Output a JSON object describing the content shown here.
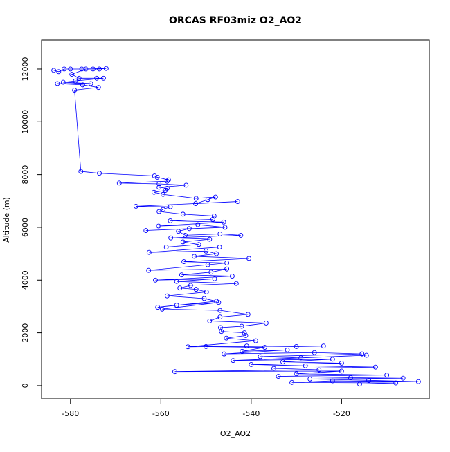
{
  "chart_data": {
    "type": "line",
    "title": "ORCAS RF03miz O2_AO2",
    "x_label": "O2_AO2",
    "y_label": "Altitude (m)",
    "color": "#0000ff",
    "markers": true,
    "x": [
      -583.7,
      -582.6,
      -581.4,
      -580,
      -577.5,
      -575,
      -573.6,
      -572.1,
      -576.6,
      -579.7,
      -578.1,
      -574.2,
      -572.7,
      -578.9,
      -581.6,
      -575.5,
      -582.9,
      -577.3,
      -573.8,
      -579.1,
      -577.7,
      -573.6,
      -561.4,
      -560.8,
      -558.3,
      -558.6,
      -569.2,
      -560.4,
      -554.4,
      -560.4,
      -558.6,
      -559,
      -561.5,
      -559.5,
      -552.2,
      -547.9,
      -549.6,
      -552.3,
      -543,
      -565.5,
      -557.9,
      -559.5,
      -560.4,
      -555.1,
      -548.2,
      -548.5,
      -557.9,
      -546.1,
      -560.5,
      -551.8,
      -545.8,
      -563.3,
      -553.7,
      -556.1,
      -554.6,
      -546.9,
      -542.3,
      -557.8,
      -549.2,
      -555.1,
      -551.6,
      -558.8,
      -547,
      -562.6,
      -550,
      -547.7,
      -552.6,
      -540.5,
      -554.9,
      -545.4,
      -549.6,
      -562.7,
      -545.4,
      -548.9,
      -555.4,
      -544.2,
      -561.2,
      -548.1,
      -556.5,
      -543.3,
      -553.4,
      -555.8,
      -552.2,
      -549.9,
      -558.6,
      -550.4,
      -547.7,
      -560.7,
      -556.5,
      -547.2,
      -559.7,
      -546.9,
      -540.7,
      -546.9,
      -549.2,
      -536.7,
      -542.1,
      -546.8,
      -546.6,
      -541.5,
      -541.2,
      -545.5,
      -539,
      -554,
      -541,
      -530,
      -524,
      -550,
      -537,
      -542,
      -532,
      -546,
      -526,
      -515.5,
      -538,
      -529,
      -514.5,
      -544,
      -522,
      -533,
      -520,
      -540,
      -528,
      -512.5,
      -535,
      -525,
      -556.9,
      -520,
      -530,
      -510,
      -534,
      -518,
      -506.4,
      -527,
      -514,
      -503,
      -522,
      -531,
      -508,
      -516
    ],
    "y": [
      11950,
      11900,
      12000,
      12000,
      12000,
      12000,
      12000,
      12020,
      12000,
      11800,
      11650,
      11650,
      11650,
      11550,
      11500,
      11450,
      11450,
      11400,
      11300,
      11200,
      8120,
      8050,
      7950,
      7900,
      7800,
      7750,
      7680,
      7650,
      7600,
      7520,
      7480,
      7400,
      7330,
      7250,
      7100,
      7150,
      7050,
      6900,
      6980,
      6800,
      6780,
      6680,
      6600,
      6500,
      6430,
      6300,
      6250,
      6200,
      6050,
      6100,
      6000,
      5880,
      5950,
      5850,
      5700,
      5750,
      5700,
      5600,
      5550,
      5450,
      5350,
      5250,
      5250,
      5050,
      5100,
      5000,
      4900,
      4820,
      4700,
      4650,
      4580,
      4370,
      4420,
      4300,
      4200,
      4150,
      4000,
      4050,
      3950,
      3870,
      3800,
      3700,
      3650,
      3550,
      3400,
      3300,
      3200,
      2970,
      3050,
      3150,
      2900,
      2850,
      2700,
      2600,
      2450,
      2370,
      2250,
      2200,
      2050,
      2000,
      1900,
      1800,
      1700,
      1470,
      1500,
      1480,
      1500,
      1480,
      1450,
      1300,
      1350,
      1200,
      1250,
      1200,
      1100,
      1050,
      1150,
      950,
      1000,
      900,
      850,
      800,
      750,
      700,
      650,
      600,
      530,
      550,
      450,
      400,
      350,
      300,
      280,
      250,
      200,
      150,
      180,
      120,
      100,
      60
    ],
    "xlim": [
      -586.4,
      -500.6
    ],
    "ylim": [
      -500,
      13100
    ],
    "xticks": [
      -580,
      -560,
      -540,
      -520
    ],
    "yticks": [
      0,
      2000,
      4000,
      6000,
      8000,
      10000,
      12000
    ]
  }
}
